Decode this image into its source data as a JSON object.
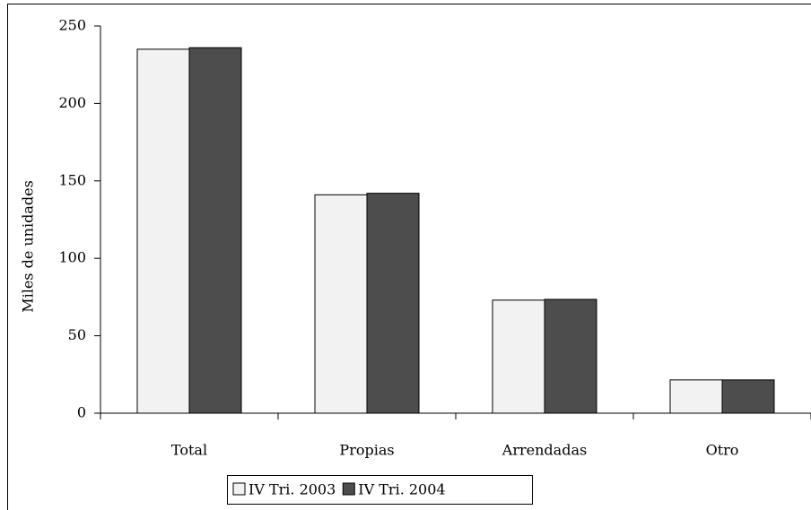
{
  "chart_data": {
    "type": "bar",
    "y_label": "Miles de unidades",
    "categories": [
      "Total",
      "Propias",
      "Arrendadas",
      "Otro"
    ],
    "series": [
      {
        "name": "IV Tri. 2003",
        "color": "#f2f2f2",
        "values": [
          235,
          141,
          73,
          21.5
        ]
      },
      {
        "name": "IV Tri. 2004",
        "color": "#4d4d4d",
        "values": [
          236,
          142,
          73.5,
          21.5
        ]
      }
    ],
    "ylim": [
      0,
      250
    ],
    "yticks": [
      0,
      50,
      100,
      150,
      200,
      250
    ],
    "legend": "bottom"
  }
}
